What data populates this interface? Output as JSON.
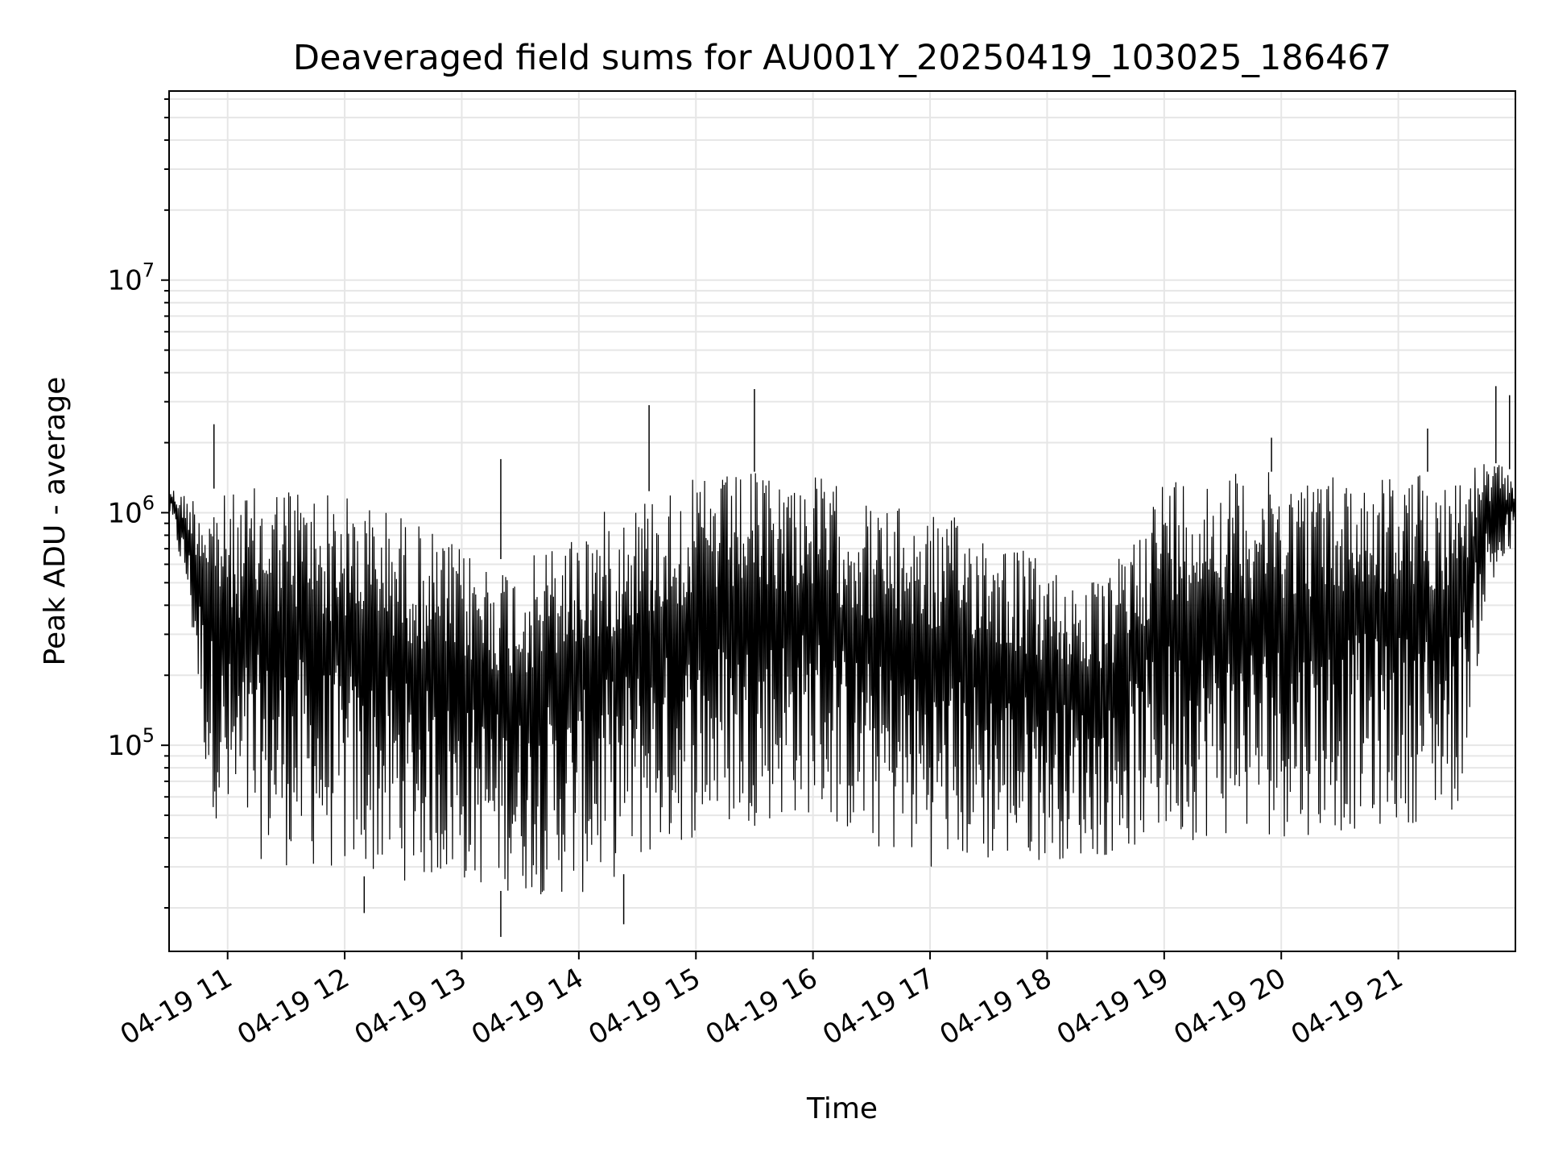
{
  "chart_data": {
    "type": "line",
    "title": "Deaveraged field sums for AU001Y_20250419_103025_186467",
    "xlabel": "Time",
    "ylabel": "Peak ADU - average",
    "y_scale": "log",
    "ylim": [
      13000,
      65000000
    ],
    "xlim": [
      "2025-04-19 10:30",
      "2025-04-19 22:00"
    ],
    "x_tick_labels": [
      "04-19 11",
      "04-19 12",
      "04-19 13",
      "04-19 14",
      "04-19 15",
      "04-19 16",
      "04-19 17",
      "04-19 18",
      "04-19 19",
      "04-19 20",
      "04-19 21"
    ],
    "y_tick_labels": [
      {
        "base": "10",
        "exp": "5",
        "value": 100000
      },
      {
        "base": "10",
        "exp": "6",
        "value": 1000000
      },
      {
        "base": "10",
        "exp": "7",
        "value": 10000000
      }
    ],
    "grid": true,
    "series": [
      {
        "color": "#000000",
        "envelope": [
          {
            "t": "2025-04-19 10:30",
            "high": 1300000,
            "low": 1000000
          },
          {
            "t": "2025-04-19 10:40",
            "high": 1200000,
            "low": 400000
          },
          {
            "t": "2025-04-19 10:50",
            "high": 1300000,
            "low": 60000
          },
          {
            "t": "2025-04-19 11:00",
            "high": 1200000,
            "low": 35000
          },
          {
            "t": "2025-04-19 11:30",
            "high": 1400000,
            "low": 30000
          },
          {
            "t": "2025-04-19 12:00",
            "high": 1200000,
            "low": 28000
          },
          {
            "t": "2025-04-19 12:30",
            "high": 1000000,
            "low": 26000
          },
          {
            "t": "2025-04-19 13:00",
            "high": 700000,
            "low": 25000
          },
          {
            "t": "2025-04-19 13:30",
            "high": 600000,
            "low": 23000
          },
          {
            "t": "2025-04-19 14:00",
            "high": 900000,
            "low": 22000
          },
          {
            "t": "2025-04-19 14:30",
            "high": 1200000,
            "low": 30000
          },
          {
            "t": "2025-04-19 15:00",
            "high": 1400000,
            "low": 40000
          },
          {
            "t": "2025-04-19 15:30",
            "high": 1500000,
            "low": 45000
          },
          {
            "t": "2025-04-19 16:00",
            "high": 1500000,
            "low": 50000
          },
          {
            "t": "2025-04-19 16:30",
            "high": 1100000,
            "low": 35000
          },
          {
            "t": "2025-04-19 17:00",
            "high": 1000000,
            "low": 30000
          },
          {
            "t": "2025-04-19 17:30",
            "high": 900000,
            "low": 30000
          },
          {
            "t": "2025-04-19 18:00",
            "high": 600000,
            "low": 32000
          },
          {
            "t": "2025-04-19 18:30",
            "high": 500000,
            "low": 33000
          },
          {
            "t": "2025-04-19 19:00",
            "high": 1500000,
            "low": 38000
          },
          {
            "t": "2025-04-19 19:30",
            "high": 1500000,
            "low": 40000
          },
          {
            "t": "2025-04-19 20:00",
            "high": 1500000,
            "low": 40000
          },
          {
            "t": "2025-04-19 20:30",
            "high": 1500000,
            "low": 42000
          },
          {
            "t": "2025-04-19 21:00",
            "high": 1500000,
            "low": 45000
          },
          {
            "t": "2025-04-19 21:30",
            "high": 1500000,
            "low": 50000
          },
          {
            "t": "2025-04-19 21:45",
            "high": 1700000,
            "low": 400000
          },
          {
            "t": "2025-04-19 22:00",
            "high": 1500000,
            "low": 700000
          }
        ],
        "spikes": [
          {
            "t": "2025-04-19 10:53",
            "value": 2400000
          },
          {
            "t": "2025-04-19 12:10",
            "value": 19000
          },
          {
            "t": "2025-04-19 13:20",
            "value": 1700000
          },
          {
            "t": "2025-04-19 13:20",
            "value": 15000
          },
          {
            "t": "2025-04-19 14:23",
            "value": 17000
          },
          {
            "t": "2025-04-19 14:36",
            "value": 2900000
          },
          {
            "t": "2025-04-19 15:30",
            "value": 3400000
          },
          {
            "t": "2025-04-19 19:55",
            "value": 2100000
          },
          {
            "t": "2025-04-19 21:15",
            "value": 2300000
          },
          {
            "t": "2025-04-19 21:50",
            "value": 3500000
          },
          {
            "t": "2025-04-19 21:57",
            "value": 3200000
          }
        ]
      }
    ]
  }
}
